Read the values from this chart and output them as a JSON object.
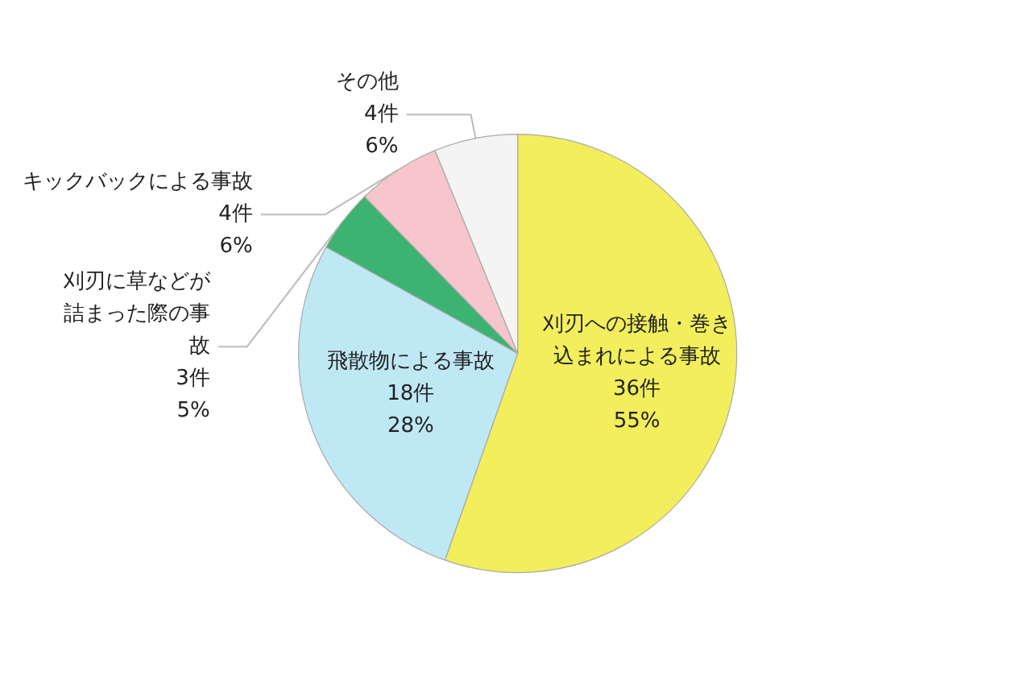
{
  "chart_data": {
    "type": "pie",
    "categories": [
      "刈刃への接触・巻き込まれによる事故",
      "飛散物による事故",
      "刈刃に草などが詰まった際の事故",
      "キックバックによる事故",
      "その他"
    ],
    "values": [
      36,
      18,
      3,
      4,
      4
    ],
    "value_labels": [
      "36件\n55%",
      "18件\n28%",
      "3件\n5%",
      "4件\n6%",
      "4件\n6%"
    ],
    "colors": [
      "#f2ee5c",
      "#bfe8f5",
      "#3cb371",
      "#f6c6cc",
      "#f4f4f4"
    ],
    "legend": false
  }
}
